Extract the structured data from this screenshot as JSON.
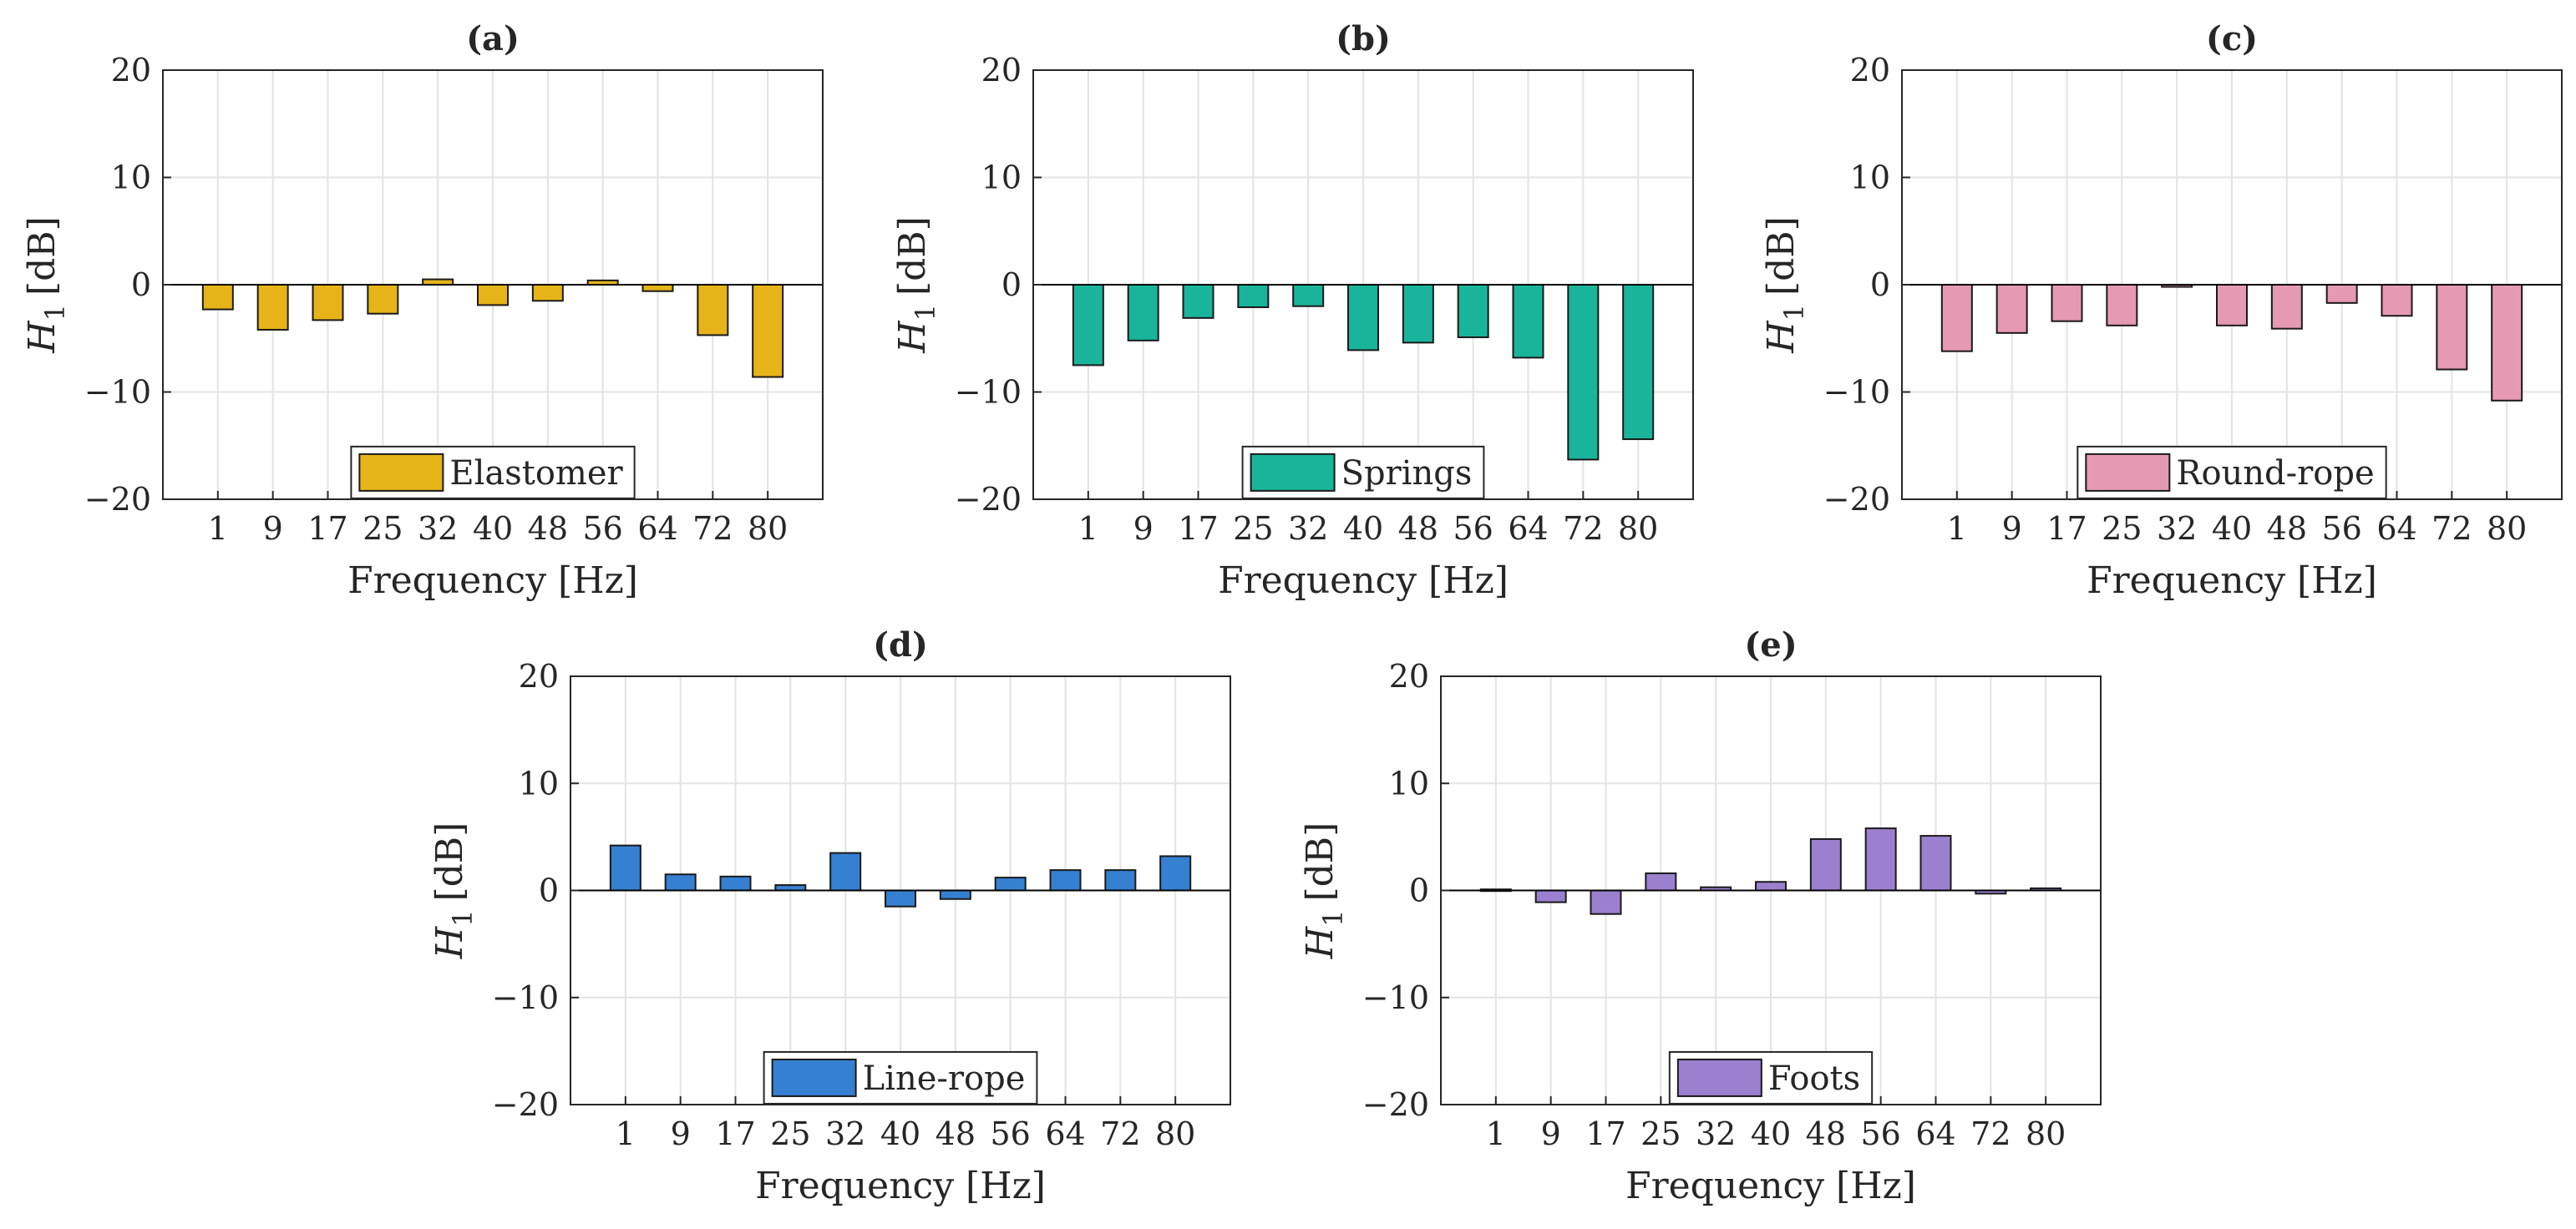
{
  "chart_data": [
    {
      "type": "bar",
      "panel": "(a)",
      "title": "(a)",
      "xlabel": "Frequency [Hz]",
      "ylabel_symbol": "H",
      "ylabel_subscript": "1",
      "ylabel_unit": "[dB]",
      "ylim": [
        -20,
        20
      ],
      "yticks": [
        20,
        10,
        0,
        -10,
        -20
      ],
      "ytick_labels": [
        "20",
        "10",
        "0",
        "−10",
        "−20"
      ],
      "categories": [
        "1",
        "9",
        "17",
        "25",
        "32",
        "40",
        "48",
        "56",
        "64",
        "72",
        "80"
      ],
      "series": [
        {
          "name": "Elastomer",
          "color": "#e6b419",
          "values": [
            -2.3,
            -4.2,
            -3.3,
            -2.7,
            0.5,
            -1.9,
            -1.5,
            0.4,
            -0.6,
            -4.7,
            -8.6
          ]
        }
      ],
      "legend": "Elastomer",
      "legend_position": "bottom-center",
      "grid": true
    },
    {
      "type": "bar",
      "panel": "(b)",
      "title": "(b)",
      "xlabel": "Frequency [Hz]",
      "ylabel_symbol": "H",
      "ylabel_subscript": "1",
      "ylabel_unit": "[dB]",
      "ylim": [
        -20,
        20
      ],
      "yticks": [
        20,
        10,
        0,
        -10,
        -20
      ],
      "ytick_labels": [
        "20",
        "10",
        "0",
        "−10",
        "−20"
      ],
      "categories": [
        "1",
        "9",
        "17",
        "25",
        "32",
        "40",
        "48",
        "56",
        "64",
        "72",
        "80"
      ],
      "series": [
        {
          "name": "Springs",
          "color": "#1ab49b",
          "values": [
            -7.5,
            -5.2,
            -3.1,
            -2.1,
            -2.0,
            -6.1,
            -5.4,
            -4.9,
            -6.8,
            -16.3,
            -14.4
          ]
        }
      ],
      "legend": "Springs",
      "legend_position": "bottom-center",
      "grid": true
    },
    {
      "type": "bar",
      "panel": "(c)",
      "title": "(c)",
      "xlabel": "Frequency [Hz]",
      "ylabel_symbol": "H",
      "ylabel_subscript": "1",
      "ylabel_unit": "[dB]",
      "ylim": [
        -20,
        20
      ],
      "yticks": [
        20,
        10,
        0,
        -10,
        -20
      ],
      "ytick_labels": [
        "20",
        "10",
        "0",
        "−10",
        "−20"
      ],
      "categories": [
        "1",
        "9",
        "17",
        "25",
        "32",
        "40",
        "48",
        "56",
        "64",
        "72",
        "80"
      ],
      "series": [
        {
          "name": "Round-rope",
          "color": "#e699b3",
          "values": [
            -6.2,
            -4.5,
            -3.4,
            -3.8,
            -0.2,
            -3.8,
            -4.1,
            -1.7,
            -2.9,
            -7.9,
            -10.8
          ]
        }
      ],
      "legend": "Round-rope",
      "legend_position": "bottom-center",
      "grid": true
    },
    {
      "type": "bar",
      "panel": "(d)",
      "title": "(d)",
      "xlabel": "Frequency [Hz]",
      "ylabel_symbol": "H",
      "ylabel_subscript": "1",
      "ylabel_unit": "[dB]",
      "ylim": [
        -20,
        20
      ],
      "yticks": [
        20,
        10,
        0,
        -10,
        -20
      ],
      "ytick_labels": [
        "20",
        "10",
        "0",
        "−10",
        "−20"
      ],
      "categories": [
        "1",
        "9",
        "17",
        "25",
        "32",
        "40",
        "48",
        "56",
        "64",
        "72",
        "80"
      ],
      "series": [
        {
          "name": "Line-rope",
          "color": "#3580d1",
          "values": [
            4.2,
            1.5,
            1.3,
            0.5,
            3.5,
            -1.5,
            -0.8,
            1.2,
            1.9,
            1.9,
            3.2
          ]
        }
      ],
      "legend": "Line-rope",
      "legend_position": "bottom-center",
      "grid": true
    },
    {
      "type": "bar",
      "panel": "(e)",
      "title": "(e)",
      "xlabel": "Frequency [Hz]",
      "ylabel_symbol": "H",
      "ylabel_subscript": "1",
      "ylabel_unit": "[dB]",
      "ylim": [
        -20,
        20
      ],
      "yticks": [
        20,
        10,
        0,
        -10,
        -20
      ],
      "ytick_labels": [
        "20",
        "10",
        "0",
        "−10",
        "−20"
      ],
      "categories": [
        "1",
        "9",
        "17",
        "25",
        "32",
        "40",
        "48",
        "56",
        "64",
        "72",
        "80"
      ],
      "series": [
        {
          "name": "Foots",
          "color": "#9b80cf",
          "values": [
            0.1,
            -1.1,
            -2.2,
            1.6,
            0.3,
            0.8,
            4.8,
            5.8,
            5.1,
            -0.3,
            0.2
          ]
        }
      ],
      "legend": "Foots",
      "legend_position": "bottom-center",
      "grid": true
    }
  ]
}
